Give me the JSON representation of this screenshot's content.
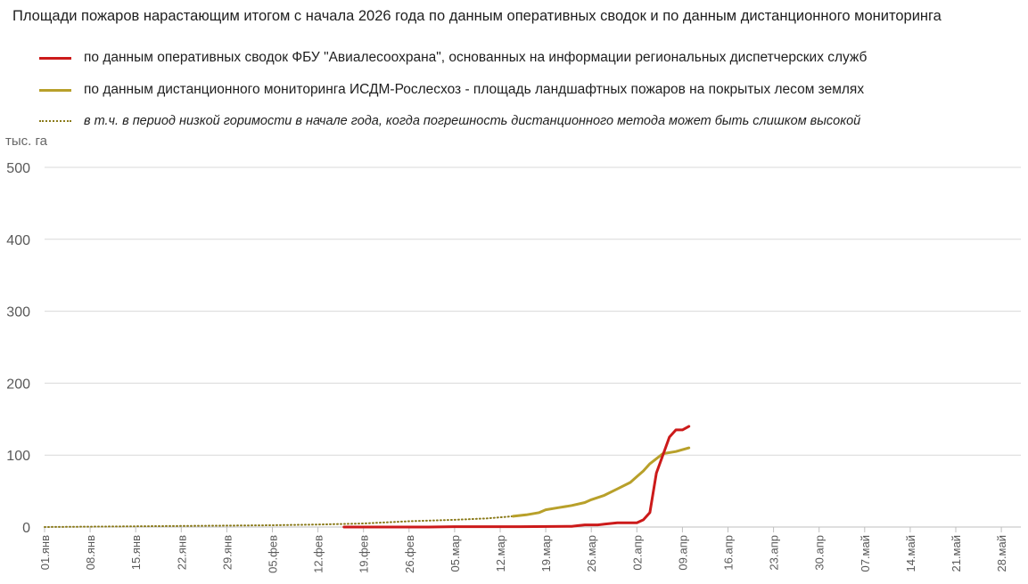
{
  "chart_data": {
    "type": "line",
    "title": "Площади пожаров нарастающим итогом с начала 2026 года по данным оперативных сводок и по данным дистанционного мониторинга",
    "ylabel": "тыс. га",
    "ylim": [
      0,
      500
    ],
    "yticks": [
      0,
      100,
      200,
      300,
      400,
      500
    ],
    "xlim": [
      "2026-01-01",
      "2026-05-31"
    ],
    "xtick_labels": [
      "01.янв",
      "08.янв",
      "15.янв",
      "22.янв",
      "29.янв",
      "05.фев",
      "12.фев",
      "19.фев",
      "26.фев",
      "05.мар",
      "12.мар",
      "19.мар",
      "26.мар",
      "02.апр",
      "09.апр",
      "16.апр",
      "23.апр",
      "30.апр",
      "07.май",
      "14.май",
      "21.май",
      "28.май"
    ],
    "xtick_dates": [
      "2026-01-01",
      "2026-01-08",
      "2026-01-15",
      "2026-01-22",
      "2026-01-29",
      "2026-02-05",
      "2026-02-12",
      "2026-02-19",
      "2026-02-26",
      "2026-03-05",
      "2026-03-12",
      "2026-03-19",
      "2026-03-26",
      "2026-04-02",
      "2026-04-09",
      "2026-04-16",
      "2026-04-23",
      "2026-04-30",
      "2026-05-07",
      "2026-05-14",
      "2026-05-21",
      "2026-05-28"
    ],
    "grid": "horizontal",
    "legend_position": "top",
    "series": [
      {
        "name": "по данным оперативных сводок ФБУ \"Авиалесоохрана\", основанных на информации региональных диспетчерских служб",
        "color": "#cc1a1a",
        "style": "solid",
        "points": [
          [
            "2026-02-16",
            0
          ],
          [
            "2026-03-01",
            0
          ],
          [
            "2026-03-05",
            0.5
          ],
          [
            "2026-03-15",
            0.5
          ],
          [
            "2026-03-23",
            1
          ],
          [
            "2026-03-24",
            2
          ],
          [
            "2026-03-25",
            3
          ],
          [
            "2026-03-27",
            3
          ],
          [
            "2026-03-28",
            4
          ],
          [
            "2026-03-30",
            6
          ],
          [
            "2026-04-02",
            6
          ],
          [
            "2026-04-03",
            10
          ],
          [
            "2026-04-04",
            20
          ],
          [
            "2026-04-05",
            75
          ],
          [
            "2026-04-06",
            100
          ],
          [
            "2026-04-07",
            125
          ],
          [
            "2026-04-08",
            135
          ],
          [
            "2026-04-09",
            135
          ],
          [
            "2026-04-10",
            140
          ]
        ]
      },
      {
        "name": "по данным дистанционного мониторинга ИСДМ-Рослесхоз - площадь ландшафтных пожаров на покрытых лесом землях",
        "color": "#b8a02a",
        "style": "solid",
        "points": [
          [
            "2026-03-14",
            15
          ],
          [
            "2026-03-16",
            17
          ],
          [
            "2026-03-18",
            20
          ],
          [
            "2026-03-19",
            24
          ],
          [
            "2026-03-21",
            27
          ],
          [
            "2026-03-23",
            30
          ],
          [
            "2026-03-25",
            34
          ],
          [
            "2026-03-26",
            38
          ],
          [
            "2026-03-28",
            44
          ],
          [
            "2026-03-30",
            53
          ],
          [
            "2026-04-01",
            62
          ],
          [
            "2026-04-02",
            70
          ],
          [
            "2026-04-03",
            78
          ],
          [
            "2026-04-04",
            88
          ],
          [
            "2026-04-06",
            102
          ],
          [
            "2026-04-08",
            105
          ],
          [
            "2026-04-10",
            110
          ]
        ]
      },
      {
        "name": "в т.ч. в период низкой горимости в начале года, когда погрешность дистанционного метода может быть слишком высокой",
        "color": "#8a7a1a",
        "style": "dotted",
        "points": [
          [
            "2026-01-01",
            0
          ],
          [
            "2026-01-08",
            0.5
          ],
          [
            "2026-01-15",
            1
          ],
          [
            "2026-01-22",
            1.5
          ],
          [
            "2026-01-29",
            2
          ],
          [
            "2026-02-05",
            2.5
          ],
          [
            "2026-02-12",
            3.5
          ],
          [
            "2026-02-19",
            5
          ],
          [
            "2026-02-26",
            8
          ],
          [
            "2026-03-05",
            10
          ],
          [
            "2026-03-10",
            12
          ],
          [
            "2026-03-14",
            15
          ]
        ]
      }
    ]
  }
}
